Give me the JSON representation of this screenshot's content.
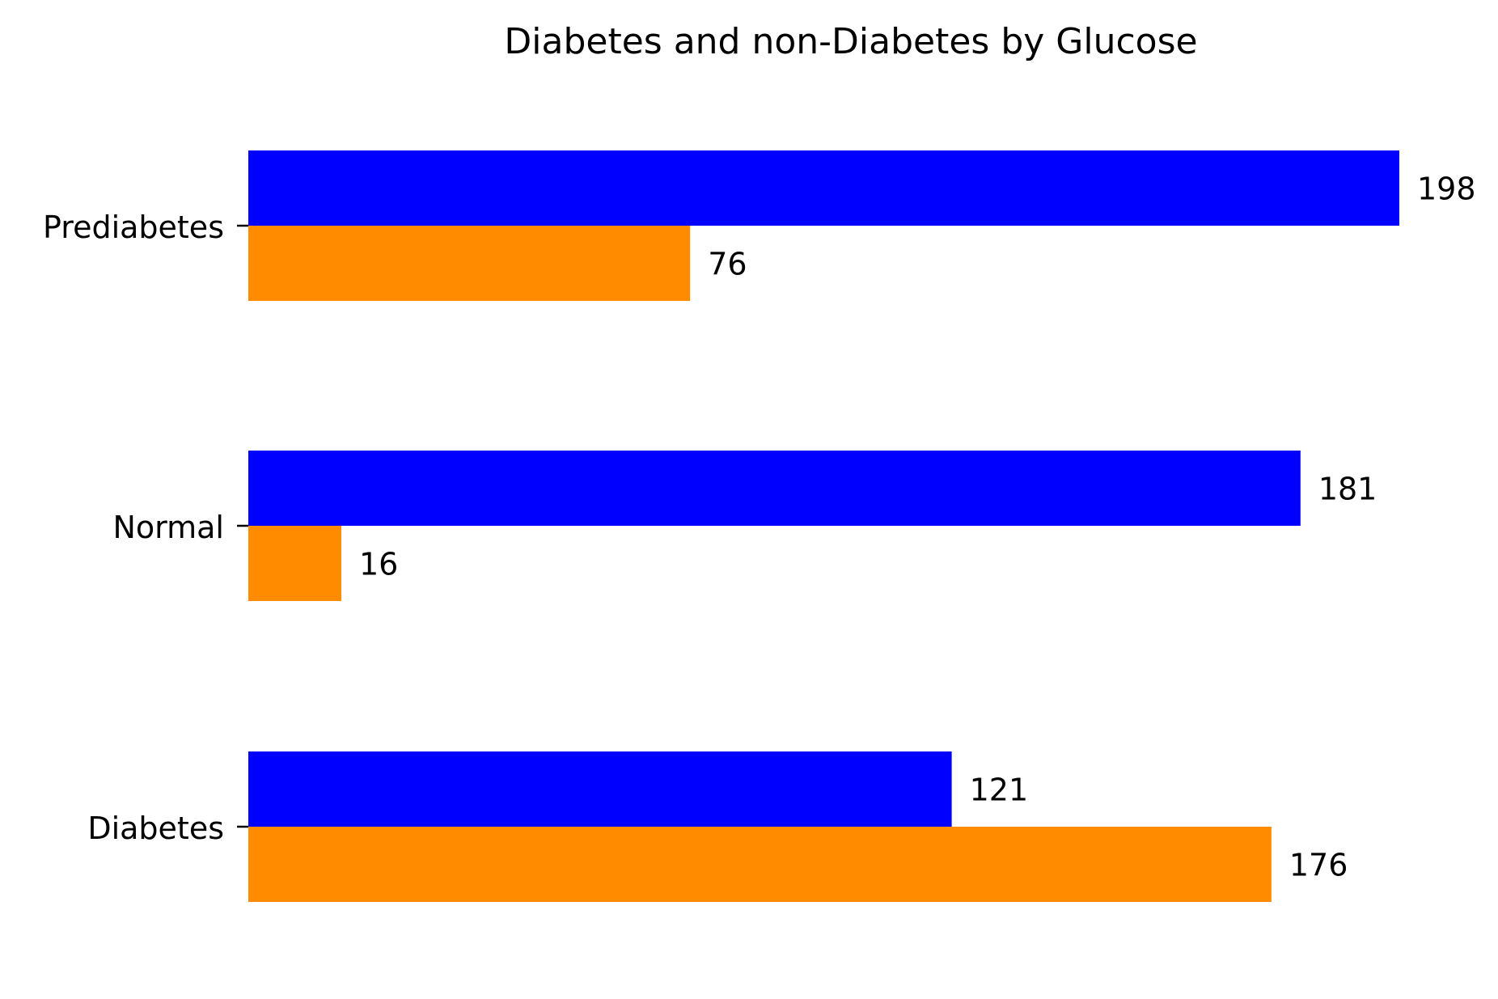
{
  "chart_data": {
    "type": "bar",
    "orientation": "horizontal",
    "title": "Diabetes and non-Diabetes by Glucose",
    "xlabel": "",
    "ylabel": "",
    "categories": [
      "Prediabetes",
      "Normal",
      "Diabetes"
    ],
    "series": [
      {
        "color": "#0000ff",
        "values": [
          198,
          181,
          121
        ]
      },
      {
        "color": "#ff8c00",
        "values": [
          76,
          16,
          176
        ]
      }
    ],
    "xlim": [
      0,
      198
    ],
    "x_axis_visible": false,
    "grid": false,
    "legend": "none",
    "data_labels": true
  }
}
